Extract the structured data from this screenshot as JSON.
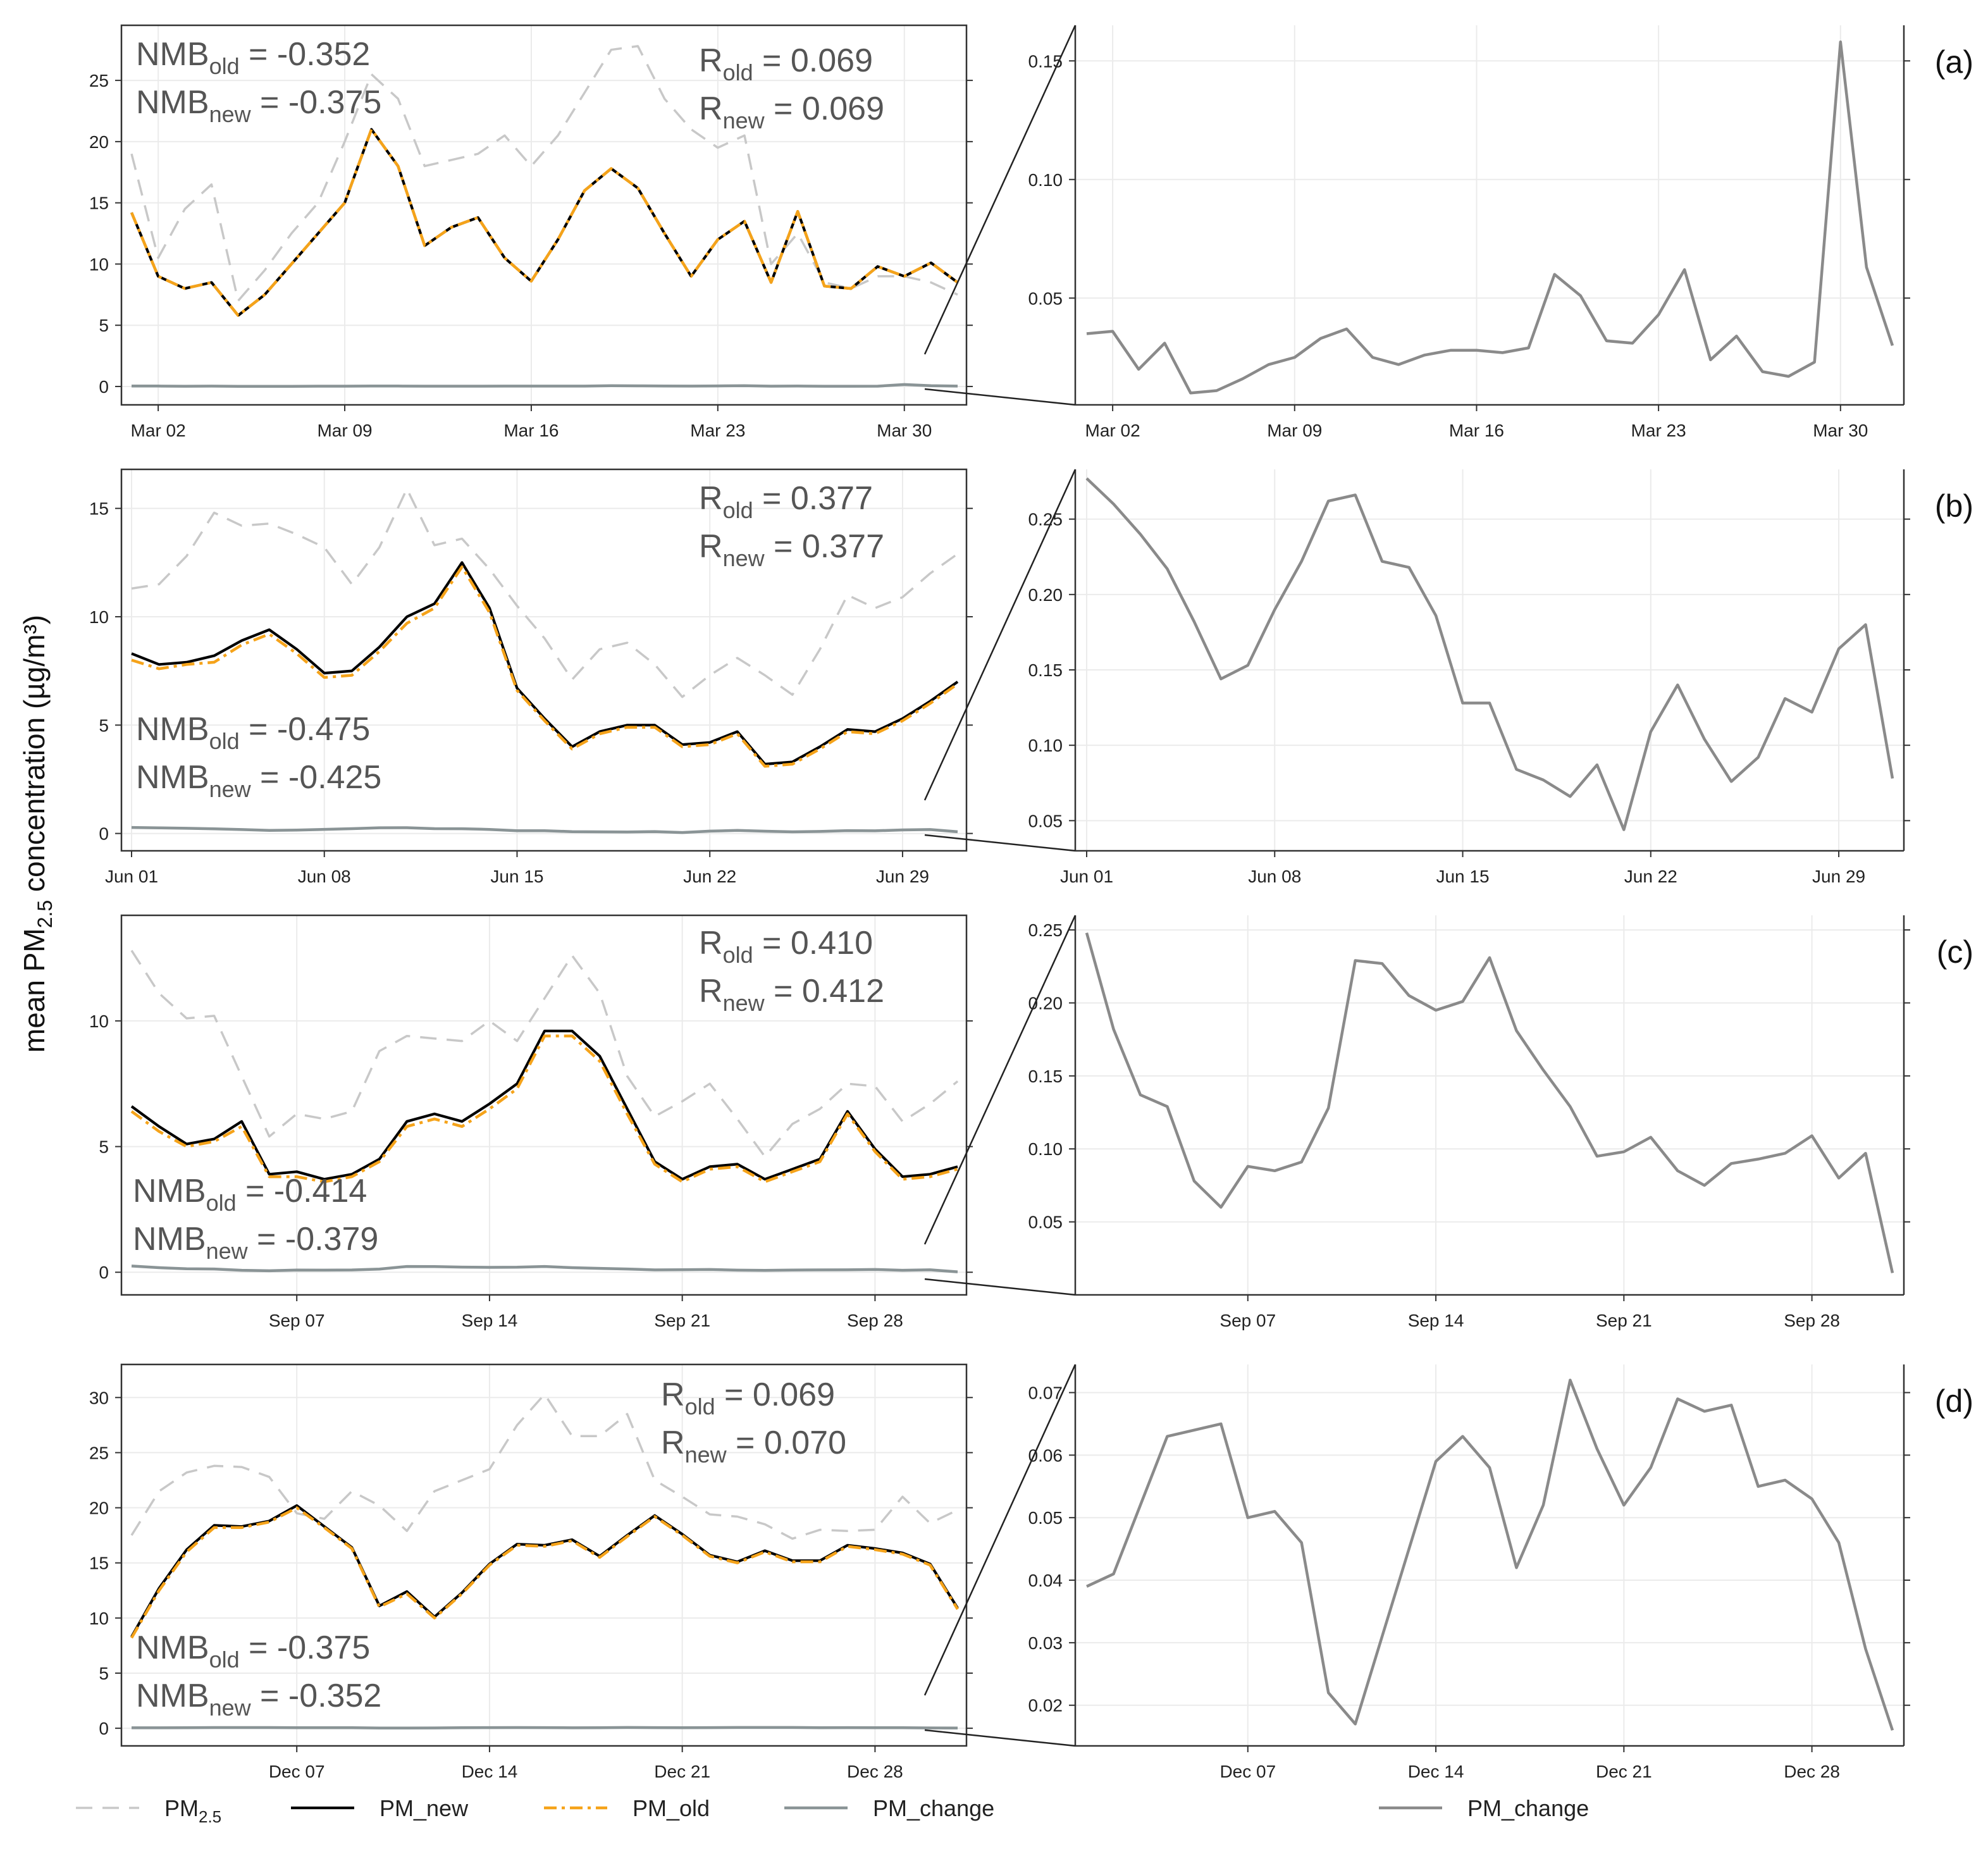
{
  "figure": {
    "ylabel": "mean PM2.5 concentration (µg/m³)",
    "ylabel_main": "mean PM",
    "ylabel_sub": "2.5",
    "ylabel_rest": " concentration (µg/m³)"
  },
  "colors": {
    "pm25": "#c8c8c8",
    "pm_new": "#000000",
    "pm_old": "#f5a31a",
    "pm_change": "#8a9496",
    "zoom_line": "#8a8a8a",
    "grid": "#ebebeb",
    "frame": "#333333"
  },
  "legend": {
    "left": [
      {
        "key": "pm25",
        "label": "PM",
        "sub": "2.5",
        "style": "dashed"
      },
      {
        "key": "pm_new",
        "label": "PM_new",
        "sub": "",
        "style": "solid"
      },
      {
        "key": "pm_old",
        "label": "PM_old",
        "sub": "",
        "style": "dashdot"
      },
      {
        "key": "pm_change",
        "label": "PM_change",
        "sub": "",
        "style": "solid"
      }
    ],
    "right": [
      {
        "key": "zoom_line",
        "label": "PM_change",
        "sub": "",
        "style": "solid"
      }
    ]
  },
  "chart_data": [
    {
      "type": "line",
      "panel": "(a)",
      "month": "March",
      "days": 32,
      "left": {
        "ylim": [
          -1.5,
          29.5
        ],
        "yticks": [
          0,
          5,
          10,
          15,
          20,
          25
        ],
        "xticks": [
          {
            "label": "Mar 02",
            "day": 2
          },
          {
            "label": "Mar 09",
            "day": 9
          },
          {
            "label": "Mar 16",
            "day": 16
          },
          {
            "label": "Mar 23",
            "day": 23
          },
          {
            "label": "Mar 30",
            "day": 30
          }
        ],
        "series": [
          {
            "name": "PM2.5",
            "key": "pm25",
            "values": [
              19,
              10.5,
              14.5,
              16.5,
              7,
              9.5,
              12.5,
              15,
              20,
              25.5,
              23.5,
              18,
              18.5,
              19,
              20.5,
              18,
              20.5,
              24,
              27.5,
              27.8,
              23.5,
              21,
              19.5,
              20.5,
              10,
              12.5,
              8.5,
              8,
              9,
              9,
              8.5,
              7.5
            ]
          },
          {
            "name": "PM_old",
            "key": "pm_old",
            "values": [
              14.2,
              9,
              8,
              8.5,
              5.8,
              7.5,
              10,
              12.5,
              15,
              21,
              18,
              11.5,
              13,
              13.8,
              10.5,
              8.6,
              12,
              16,
              17.8,
              16.2,
              12.5,
              9,
              12,
              13.5,
              8.5,
              14.3,
              8.2,
              8,
              9.8,
              9,
              10.1,
              8.5
            ]
          },
          {
            "name": "PM_new",
            "key": "pm_new",
            "values": [
              14.2,
              9,
              8,
              8.5,
              5.8,
              7.5,
              10,
              12.5,
              15,
              21,
              18,
              11.5,
              13,
              13.8,
              10.5,
              8.6,
              12,
              16,
              17.8,
              16.2,
              12.5,
              9,
              12,
              13.5,
              8.5,
              14.3,
              8.2,
              8,
              9.8,
              9,
              10.1,
              8.5
            ]
          },
          {
            "name": "PM_change",
            "key": "pm_change",
            "values": [
              0.035,
              0.036,
              0.02,
              0.031,
              0.01,
              0.011,
              0.016,
              0.022,
              0.025,
              0.033,
              0.037,
              0.025,
              0.022,
              0.026,
              0.028,
              0.028,
              0.027,
              0.029,
              0.06,
              0.051,
              0.032,
              0.031,
              0.043,
              0.062,
              0.024,
              0.034,
              0.019,
              0.017,
              0.023,
              0.158,
              0.063,
              0.03
            ]
          }
        ],
        "stats": {
          "nmb_old": "= -0.352",
          "nmb_new": "= -0.375",
          "r_old": "= 0.069",
          "r_new": "= 0.069"
        }
      },
      "right": {
        "ylim": [
          0.005,
          0.165
        ],
        "yticks": [
          "0.05",
          "0.10",
          "0.15"
        ],
        "xticks": [
          {
            "label": "Mar 02",
            "day": 2
          },
          {
            "label": "Mar 09",
            "day": 9
          },
          {
            "label": "Mar 16",
            "day": 16
          },
          {
            "label": "Mar 23",
            "day": 23
          },
          {
            "label": "Mar 30",
            "day": 30
          }
        ]
      }
    },
    {
      "type": "line",
      "panel": "(b)",
      "month": "June",
      "days": 30,
      "left": {
        "ylim": [
          -0.8,
          16.8
        ],
        "yticks": [
          0,
          5,
          10,
          15
        ],
        "xticks": [
          {
            "label": "Jun 01",
            "day": 1
          },
          {
            "label": "Jun 08",
            "day": 8
          },
          {
            "label": "Jun 15",
            "day": 15
          },
          {
            "label": "Jun 22",
            "day": 22
          },
          {
            "label": "Jun 29",
            "day": 29
          }
        ],
        "series": [
          {
            "name": "PM2.5",
            "key": "pm25",
            "values": [
              11.3,
              11.5,
              12.8,
              14.8,
              14.2,
              14.3,
              13.8,
              13.2,
              11.5,
              13.2,
              15.9,
              13.3,
              13.6,
              12.2,
              10.5,
              9,
              7.1,
              8.5,
              8.8,
              7.8,
              6.3,
              7.3,
              8.1,
              7.3,
              6.4,
              8.5,
              11,
              10.4,
              10.9,
              12,
              12.9
            ]
          },
          {
            "name": "PM_old",
            "key": "pm_old",
            "values": [
              8.0,
              7.6,
              7.8,
              7.9,
              8.7,
              9.2,
              8.3,
              7.2,
              7.3,
              8.4,
              9.7,
              10.4,
              12.3,
              10.2,
              6.6,
              5.2,
              3.9,
              4.6,
              4.9,
              4.9,
              4.0,
              4.1,
              4.6,
              3.1,
              3.2,
              3.9,
              4.7,
              4.6,
              5.2,
              6.0,
              6.9
            ]
          },
          {
            "name": "PM_new",
            "key": "pm_new",
            "values": [
              8.3,
              7.8,
              7.9,
              8.2,
              8.9,
              9.4,
              8.5,
              7.4,
              7.5,
              8.6,
              10.0,
              10.6,
              12.5,
              10.4,
              6.7,
              5.3,
              4.0,
              4.7,
              5.0,
              5.0,
              4.1,
              4.2,
              4.7,
              3.2,
              3.3,
              4.0,
              4.8,
              4.7,
              5.3,
              6.1,
              7.0
            ]
          },
          {
            "name": "PM_change",
            "key": "pm_change",
            "values": [
              0.277,
              0.26,
              0.24,
              0.217,
              0.182,
              0.144,
              0.153,
              0.19,
              0.222,
              0.262,
              0.266,
              0.222,
              0.218,
              0.186,
              0.128,
              0.128,
              0.084,
              0.077,
              0.066,
              0.087,
              0.044,
              0.109,
              0.14,
              0.104,
              0.076,
              0.092,
              0.131,
              0.122,
              0.164,
              0.18,
              0.078
            ]
          }
        ],
        "stats": {
          "nmb_old": "= -0.475",
          "nmb_new": "= -0.425",
          "r_old": "= 0.377",
          "r_new": "= 0.377"
        }
      },
      "right": {
        "ylim": [
          0.03,
          0.283
        ],
        "yticks": [
          "0.05",
          "0.10",
          "0.15",
          "0.20",
          "0.25"
        ],
        "xticks": [
          {
            "label": "Jun 01",
            "day": 1
          },
          {
            "label": "Jun 08",
            "day": 8
          },
          {
            "label": "Jun 15",
            "day": 15
          },
          {
            "label": "Jun 22",
            "day": 22
          },
          {
            "label": "Jun 29",
            "day": 29
          }
        ]
      }
    },
    {
      "type": "line",
      "panel": "(c)",
      "month": "September",
      "days": 30,
      "left": {
        "ylim": [
          -0.9,
          14.2
        ],
        "yticks": [
          0,
          5,
          10
        ],
        "xticks": [
          {
            "label": "Sep 07",
            "day": 7
          },
          {
            "label": "Sep 14",
            "day": 14
          },
          {
            "label": "Sep 21",
            "day": 21
          },
          {
            "label": "Sep 28",
            "day": 28
          }
        ],
        "series": [
          {
            "name": "PM2.5",
            "key": "pm25",
            "values": [
              12.8,
              11.1,
              10.1,
              10.2,
              7.8,
              5.4,
              6.3,
              6.1,
              6.4,
              8.8,
              9.4,
              9.3,
              9.2,
              10,
              9.2,
              10.9,
              12.6,
              11.1,
              7.8,
              6.2,
              6.8,
              7.5,
              6.1,
              4.6,
              5.9,
              6.5,
              7.5,
              7.4,
              6,
              6.7,
              7.6
            ]
          },
          {
            "name": "PM_old",
            "key": "pm_old",
            "values": [
              6.4,
              5.6,
              5.0,
              5.2,
              5.8,
              3.8,
              3.8,
              3.6,
              3.8,
              4.4,
              5.8,
              6.1,
              5.8,
              6.5,
              7.3,
              9.4,
              9.4,
              8.4,
              6.3,
              4.3,
              3.6,
              4.1,
              4.2,
              3.6,
              4.0,
              4.4,
              6.3,
              4.8,
              3.7,
              3.8,
              4.1
            ]
          },
          {
            "name": "PM_new",
            "key": "pm_new",
            "values": [
              6.6,
              5.8,
              5.1,
              5.3,
              6.0,
              3.9,
              4.0,
              3.7,
              3.9,
              4.5,
              6.0,
              6.3,
              6.0,
              6.7,
              7.5,
              9.6,
              9.6,
              8.6,
              6.5,
              4.4,
              3.7,
              4.2,
              4.3,
              3.7,
              4.1,
              4.5,
              6.4,
              4.9,
              3.8,
              3.9,
              4.2
            ]
          },
          {
            "name": "PM_change",
            "key": "pm_change",
            "values": [
              0.248,
              0.182,
              0.137,
              0.129,
              0.078,
              0.06,
              0.088,
              0.085,
              0.091,
              0.128,
              0.229,
              0.227,
              0.205,
              0.195,
              0.201,
              0.231,
              0.181,
              0.154,
              0.129,
              0.095,
              0.098,
              0.108,
              0.085,
              0.075,
              0.09,
              0.093,
              0.097,
              0.109,
              0.08,
              0.097,
              0.015
            ]
          }
        ],
        "stats": {
          "nmb_old": "= -0.414",
          "nmb_new": "= -0.379",
          "r_old": "= 0.410",
          "r_new": "= 0.412"
        }
      },
      "right": {
        "ylim": [
          0.0,
          0.26
        ],
        "yticks": [
          "0.05",
          "0.10",
          "0.15",
          "0.20",
          "0.25"
        ],
        "xticks": [
          {
            "label": "Sep 07",
            "day": 7
          },
          {
            "label": "Sep 14",
            "day": 14
          },
          {
            "label": "Sep 21",
            "day": 21
          },
          {
            "label": "Sep 28",
            "day": 28
          }
        ]
      }
    },
    {
      "type": "line",
      "panel": "(d)",
      "month": "December",
      "days": 30,
      "left": {
        "ylim": [
          -1.6,
          33.0
        ],
        "yticks": [
          0,
          5,
          10,
          15,
          20,
          25,
          30
        ],
        "xticks": [
          {
            "label": "Dec 07",
            "day": 7
          },
          {
            "label": "Dec 14",
            "day": 14
          },
          {
            "label": "Dec 21",
            "day": 21
          },
          {
            "label": "Dec 28",
            "day": 28
          }
        ],
        "series": [
          {
            "name": "PM2.5",
            "key": "pm25",
            "values": [
              17.5,
              21.5,
              23.2,
              23.8,
              23.7,
              22.8,
              19.5,
              19,
              21.5,
              20.2,
              17.9,
              21.5,
              22.5,
              23.5,
              27.5,
              30.3,
              26.5,
              26.5,
              28.5,
              22.5,
              21,
              19.4,
              19.2,
              18.5,
              17.2,
              18,
              17.9,
              18,
              21,
              18.6,
              19.8
            ]
          },
          {
            "name": "PM_old",
            "key": "pm_old",
            "values": [
              8.2,
              12.5,
              16,
              18.2,
              18.2,
              18.7,
              20,
              18.2,
              16.3,
              11,
              12.2,
              10,
              12.2,
              14.8,
              16.6,
              16.5,
              17,
              15.5,
              17.4,
              19.2,
              17.5,
              15.6,
              15,
              16,
              15.1,
              15.1,
              16.5,
              16.2,
              15.8,
              14.8,
              10.8
            ]
          },
          {
            "name": "PM_new",
            "key": "pm_new",
            "values": [
              8.3,
              12.7,
              16.2,
              18.4,
              18.3,
              18.8,
              20.2,
              18.3,
              16.4,
              11.1,
              12.4,
              10.1,
              12.3,
              14.9,
              16.7,
              16.6,
              17.1,
              15.6,
              17.5,
              19.3,
              17.6,
              15.7,
              15.1,
              16.1,
              15.2,
              15.2,
              16.6,
              16.3,
              15.9,
              14.9,
              10.9
            ]
          },
          {
            "name": "PM_change",
            "key": "pm_change",
            "values": [
              0.039,
              0.041,
              0.052,
              0.063,
              0.064,
              0.065,
              0.05,
              0.051,
              0.046,
              0.022,
              0.017,
              0.031,
              0.045,
              0.059,
              0.063,
              0.058,
              0.042,
              0.052,
              0.072,
              0.061,
              0.052,
              0.058,
              0.069,
              0.067,
              0.068,
              0.055,
              0.056,
              0.053,
              0.046,
              0.029,
              0.016
            ]
          }
        ],
        "stats": {
          "nmb_old": "= -0.375",
          "nmb_new": "= -0.352",
          "r_old": "= 0.069",
          "r_new": "= 0.070"
        }
      },
      "right": {
        "ylim": [
          0.0135,
          0.0745
        ],
        "yticks": [
          "0.02",
          "0.03",
          "0.04",
          "0.05",
          "0.06",
          "0.07"
        ],
        "xticks": [
          {
            "label": "Dec 07",
            "day": 7
          },
          {
            "label": "Dec 14",
            "day": 14
          },
          {
            "label": "Dec 21",
            "day": 21
          },
          {
            "label": "Dec 28",
            "day": 28
          }
        ]
      }
    }
  ]
}
